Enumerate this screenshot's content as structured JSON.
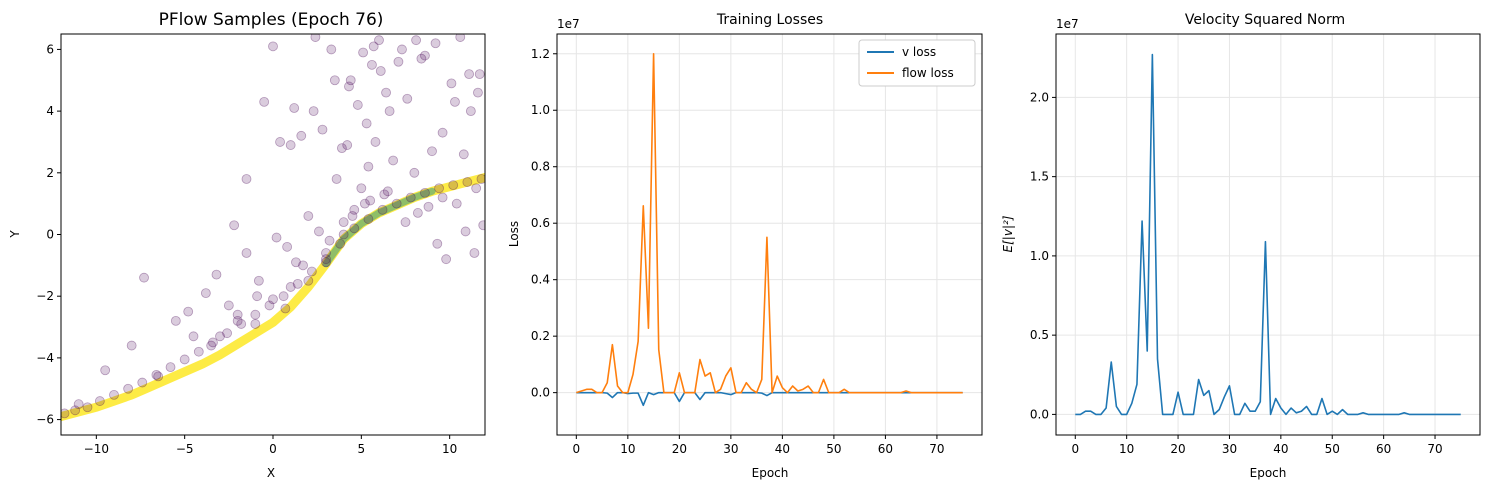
{
  "chart_data": [
    {
      "type": "scatter",
      "title": "PFlow Samples (Epoch 76)",
      "xlabel": "X",
      "ylabel": "Y",
      "xlim": [
        -12,
        12
      ],
      "ylim": [
        -6.5,
        6.5
      ],
      "xticks": [
        -10,
        -5,
        0,
        5,
        10
      ],
      "yticks": [
        -6,
        -4,
        -2,
        0,
        2,
        4,
        6
      ],
      "xtick_labels": [
        "−10",
        "−5",
        "0",
        "5",
        "10"
      ],
      "ytick_labels": [
        "−6",
        "−4",
        "−2",
        "0",
        "2",
        "4",
        "6"
      ],
      "grid": false,
      "colormap": "viridis",
      "point_color": "#440154",
      "point_alpha": 0.2,
      "series": [
        {
          "x": [
            -11.8,
            -11.2,
            -10.5,
            -9.8,
            -9.0,
            -8.2,
            -7.4,
            -6.6,
            -5.8,
            -5.0,
            -4.2,
            -3.4,
            -2.6,
            -1.8,
            -1.0,
            -0.2,
            0.6,
            1.4,
            2.2,
            3.0,
            3.8,
            4.6,
            5.4,
            6.2,
            7.0,
            7.8,
            8.6,
            9.4,
            10.2,
            11.0,
            11.8,
            -11.0,
            -9.5,
            -8.0,
            -7.3,
            -6.5,
            -5.5,
            -4.5,
            -3.8,
            -3.2,
            -2.5,
            -1.5,
            -0.8,
            0.2,
            0.8,
            1.3,
            2.0,
            2.6,
            3.2,
            3.6,
            4.2,
            4.6,
            5.0,
            5.4,
            5.8,
            6.3,
            6.8,
            7.5,
            8.2,
            8.8,
            9.3,
            9.8,
            10.4,
            10.9,
            11.4,
            11.9,
            -2.2,
            -1.5,
            -0.5,
            0.4,
            1.0,
            1.6,
            2.3,
            2.8,
            3.3,
            3.9,
            4.4,
            4.8,
            5.3,
            5.7,
            6.1,
            6.6,
            7.1,
            7.6,
            8.1,
            8.6,
            9.0,
            9.6,
            10.1,
            10.6,
            11.1,
            11.6,
            0.0,
            1.2,
            2.4,
            3.5,
            4.3,
            5.1,
            5.6,
            6.0,
            6.4,
            7.3,
            8.4,
            9.2,
            10.3,
            11.2,
            11.7,
            -4.8,
            -3.5,
            -2.0,
            -0.9,
            0.7,
            1.7,
            3.0,
            4.0,
            5.2,
            6.5,
            8.0,
            9.6,
            10.8,
            11.5,
            -3.0,
            -2.0,
            -1.0,
            0.0,
            1.0,
            2.0,
            3.0,
            4.0,
            4.5,
            5.5
          ],
          "y": [
            -5.8,
            -5.7,
            -5.6,
            -5.4,
            -5.2,
            -5.0,
            -4.8,
            -4.55,
            -4.3,
            -4.05,
            -3.8,
            -3.5,
            -3.2,
            -2.9,
            -2.6,
            -2.3,
            -2.0,
            -1.6,
            -1.2,
            -0.8,
            -0.3,
            0.2,
            0.5,
            0.8,
            1.0,
            1.2,
            1.35,
            1.5,
            1.6,
            1.7,
            1.8,
            -5.5,
            -4.4,
            -3.6,
            -1.4,
            -4.6,
            -2.8,
            -3.3,
            -1.9,
            -1.3,
            -2.3,
            -0.6,
            -1.5,
            -0.1,
            -0.4,
            -0.9,
            0.6,
            0.1,
            -0.2,
            1.8,
            2.9,
            0.8,
            1.5,
            2.2,
            3.0,
            1.3,
            2.4,
            0.4,
            0.7,
            0.9,
            -0.3,
            -0.8,
            1.0,
            0.1,
            -0.6,
            0.3,
            0.3,
            1.8,
            4.3,
            3.0,
            2.9,
            3.2,
            4.0,
            3.4,
            6.0,
            2.8,
            5.0,
            4.2,
            3.6,
            6.1,
            5.3,
            4.0,
            5.6,
            4.4,
            6.3,
            5.8,
            2.7,
            3.3,
            4.9,
            6.4,
            5.2,
            4.6,
            6.1,
            4.1,
            6.4,
            5.0,
            4.8,
            5.9,
            5.5,
            6.3,
            4.6,
            6.0,
            5.7,
            6.2,
            4.3,
            4.0,
            5.2,
            -2.5,
            -3.6,
            -2.8,
            -2.0,
            -2.4,
            -1.0,
            -0.6,
            0.4,
            1.0,
            1.4,
            2.0,
            1.2,
            2.6,
            1.5,
            -3.3,
            -2.6,
            -2.9,
            -2.1,
            -1.7,
            -1.5,
            -0.9,
            0.0,
            0.6,
            1.1
          ]
        }
      ],
      "density_curve": {
        "x": [
          -12,
          -11,
          -10,
          -9,
          -8,
          -7,
          -6,
          -5,
          -4,
          -3,
          -2,
          -1,
          0,
          1,
          2,
          3,
          4,
          5,
          6,
          7,
          8,
          9,
          10,
          11,
          12
        ],
        "y": [
          -5.9,
          -5.75,
          -5.6,
          -5.4,
          -5.2,
          -4.95,
          -4.7,
          -4.45,
          -4.2,
          -3.9,
          -3.55,
          -3.2,
          -2.85,
          -2.35,
          -1.7,
          -0.95,
          -0.15,
          0.35,
          0.7,
          0.95,
          1.2,
          1.4,
          1.55,
          1.7,
          1.85
        ]
      }
    },
    {
      "type": "line",
      "title": "Training Losses",
      "xlabel": "Epoch",
      "ylabel": "Loss",
      "offset_label": "1e7",
      "xlim": [
        -3.75,
        78.75
      ],
      "ylim": [
        -0.15,
        1.27
      ],
      "xticks": [
        0,
        10,
        20,
        30,
        40,
        50,
        60,
        70
      ],
      "yticks": [
        0.0,
        0.2,
        0.4,
        0.6,
        0.8,
        1.0,
        1.2
      ],
      "ytick_labels": [
        "0.0",
        "0.2",
        "0.4",
        "0.6",
        "0.8",
        "1.0",
        "1.2"
      ],
      "grid": true,
      "legend": "top-right",
      "series": [
        {
          "name": "v loss",
          "color": "#1f77b4",
          "values": [
            0,
            0,
            0,
            0,
            0,
            0,
            -0.005,
            -0.05,
            0,
            0,
            -0.01,
            -0.005,
            -0.005,
            -0.13,
            0,
            -0.02,
            0,
            0,
            0,
            0,
            -0.09,
            0,
            0,
            0,
            -0.07,
            0,
            0,
            0,
            0,
            -0.01,
            -0.02,
            0,
            0,
            0,
            0,
            0,
            -0.005,
            -0.03,
            0,
            0,
            0,
            0,
            0,
            0,
            0,
            0,
            0,
            0,
            0,
            0,
            0,
            0,
            0,
            0,
            0,
            0,
            0,
            0,
            0,
            0,
            0,
            0,
            0,
            0,
            0,
            0,
            0,
            0,
            0,
            0,
            0,
            0,
            0,
            0,
            0,
            0
          ]
        },
        {
          "name": "flow loss",
          "color": "#ff7f0e",
          "values": [
            0,
            0.01,
            0.02,
            0.02,
            0,
            0,
            0.06,
            0.29,
            0.04,
            0,
            0,
            0.11,
            0.31,
            1.13,
            0.39,
            2.05,
            0.26,
            0,
            0,
            0,
            0.12,
            0,
            0,
            0,
            0.2,
            0.1,
            0.12,
            0,
            0.02,
            0.1,
            0.15,
            0,
            0,
            0.06,
            0.02,
            0,
            0.08,
            0.94,
            0,
            0.1,
            0.03,
            0,
            0.04,
            0.01,
            0.02,
            0.04,
            0,
            0,
            0.08,
            0,
            0,
            0,
            0.02,
            0,
            0,
            0,
            0,
            0,
            0,
            0,
            0,
            0,
            0,
            0,
            0.01,
            0,
            0,
            0,
            0,
            0,
            0,
            0,
            0,
            0,
            0,
            0
          ]
        }
      ],
      "scale_note": "flow loss values in units of 1e7 / 1.7"
    },
    {
      "type": "line",
      "title": "Velocity Squared Norm",
      "xlabel": "Epoch",
      "ylabel": "E[|v|²]",
      "offset_label": "1e7",
      "xlim": [
        -3.75,
        78.75
      ],
      "ylim": [
        -0.13,
        2.4
      ],
      "xticks": [
        0,
        10,
        20,
        30,
        40,
        50,
        60,
        70
      ],
      "yticks": [
        0.0,
        0.5,
        1.0,
        1.5,
        2.0
      ],
      "ytick_labels": [
        "0.0",
        "0.5",
        "1.0",
        "1.5",
        "2.0"
      ],
      "grid": true,
      "series": [
        {
          "name": "",
          "color": "#1f77b4",
          "values": [
            0,
            0,
            0.02,
            0.02,
            0,
            0,
            0.04,
            0.33,
            0.05,
            0,
            0,
            0.07,
            0.19,
            1.22,
            0.4,
            2.27,
            0.35,
            0,
            0,
            0,
            0.14,
            0,
            0,
            0,
            0.22,
            0.12,
            0.15,
            0,
            0.03,
            0.11,
            0.18,
            0,
            0,
            0.07,
            0.02,
            0.02,
            0.08,
            1.09,
            0,
            0.1,
            0.04,
            0,
            0.04,
            0.01,
            0.02,
            0.05,
            0,
            0,
            0.1,
            0,
            0.02,
            0,
            0.03,
            0,
            0,
            0,
            0.01,
            0,
            0,
            0,
            0,
            0,
            0,
            0,
            0.01,
            0,
            0,
            0,
            0,
            0,
            0,
            0,
            0,
            0,
            0,
            0
          ]
        }
      ]
    }
  ]
}
